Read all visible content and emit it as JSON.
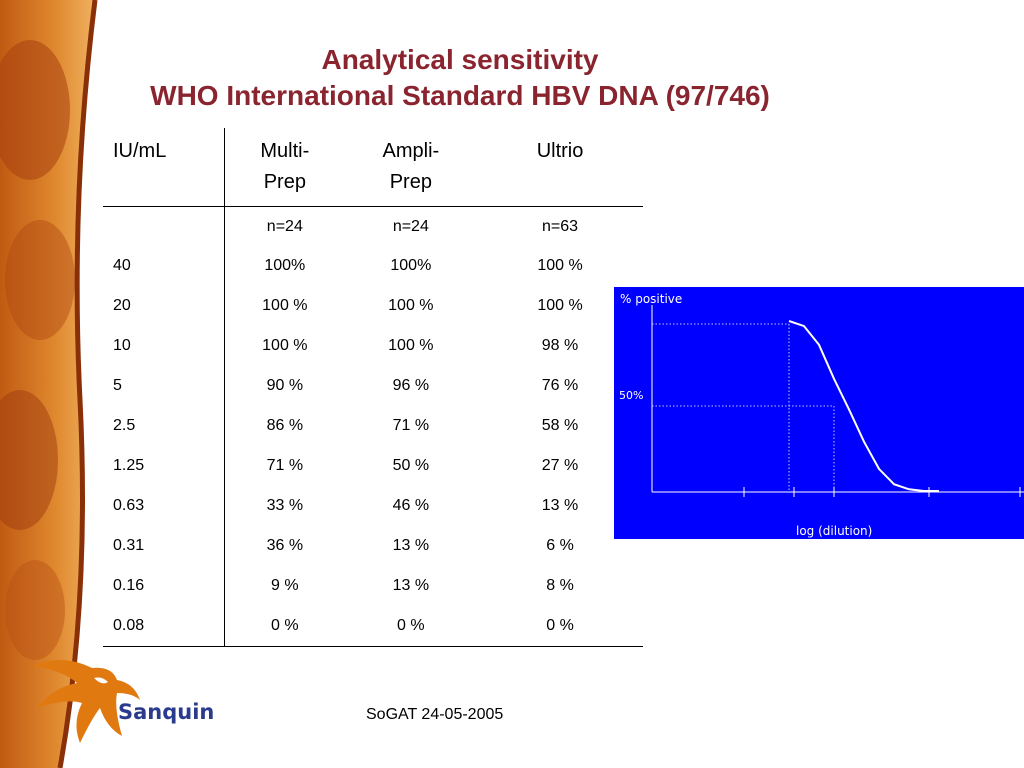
{
  "title": {
    "line1": "Analytical sensitivity",
    "line2": "WHO International Standard HBV DNA (97/746)"
  },
  "table": {
    "headers": [
      {
        "line1": "IU/mL",
        "line2": ""
      },
      {
        "line1": "Multi-",
        "line2": "Prep"
      },
      {
        "line1": "Ampli-",
        "line2": "Prep"
      },
      {
        "line1": "Ultrio",
        "line2": ""
      }
    ],
    "n_row": [
      "",
      "n=24",
      "n=24",
      "n=63"
    ],
    "rows": [
      [
        "40",
        "100%",
        "100%",
        "100 %"
      ],
      [
        "20",
        "100 %",
        "100 %",
        "100 %"
      ],
      [
        "10",
        "100 %",
        "100 %",
        "98 %"
      ],
      [
        "5",
        "90 %",
        "96 %",
        "76 %"
      ],
      [
        "2.5",
        "86 %",
        "71 %",
        "58 %"
      ],
      [
        "1.25",
        "71 %",
        "50 %",
        "27 %"
      ],
      [
        "0.63",
        "33 %",
        "46 %",
        "13 %"
      ],
      [
        "0.31",
        "36 %",
        "13 %",
        "6 %"
      ],
      [
        "0.16",
        "9 %",
        "13 %",
        "8 %"
      ],
      [
        "0.08",
        "0 %",
        "0 %",
        "0 %"
      ]
    ]
  },
  "chart": {
    "background": "#0000ff",
    "ylabel": "% positive",
    "xlabel": "log (dilution)",
    "mid_label": "50%"
  },
  "chart_data": {
    "type": "line",
    "title": "",
    "xlabel": "log (dilution)",
    "ylabel": "% positive",
    "annotations": [
      "50%"
    ],
    "series": [
      {
        "x": [
          0.0,
          0.1,
          0.2,
          0.3,
          0.4,
          0.5,
          0.6,
          0.7,
          0.8,
          0.9,
          1.0
        ],
        "values": [
          100,
          97,
          86,
          66,
          48,
          29,
          13,
          4,
          1,
          0,
          0
        ]
      }
    ],
    "ylim": [
      0,
      100
    ],
    "grid": false,
    "colors": {
      "line": "#ffffff",
      "background": "#0000ff"
    }
  },
  "footer": {
    "text": "SoGAT 24-05-2005"
  },
  "logo": {
    "text": "Sanquin",
    "colors": {
      "bird": "#e07a10",
      "text": "#2a3a8c"
    }
  },
  "colors": {
    "title": "#8a2530",
    "band_dark": "#8a3a0c",
    "band_light": "#e89040"
  }
}
